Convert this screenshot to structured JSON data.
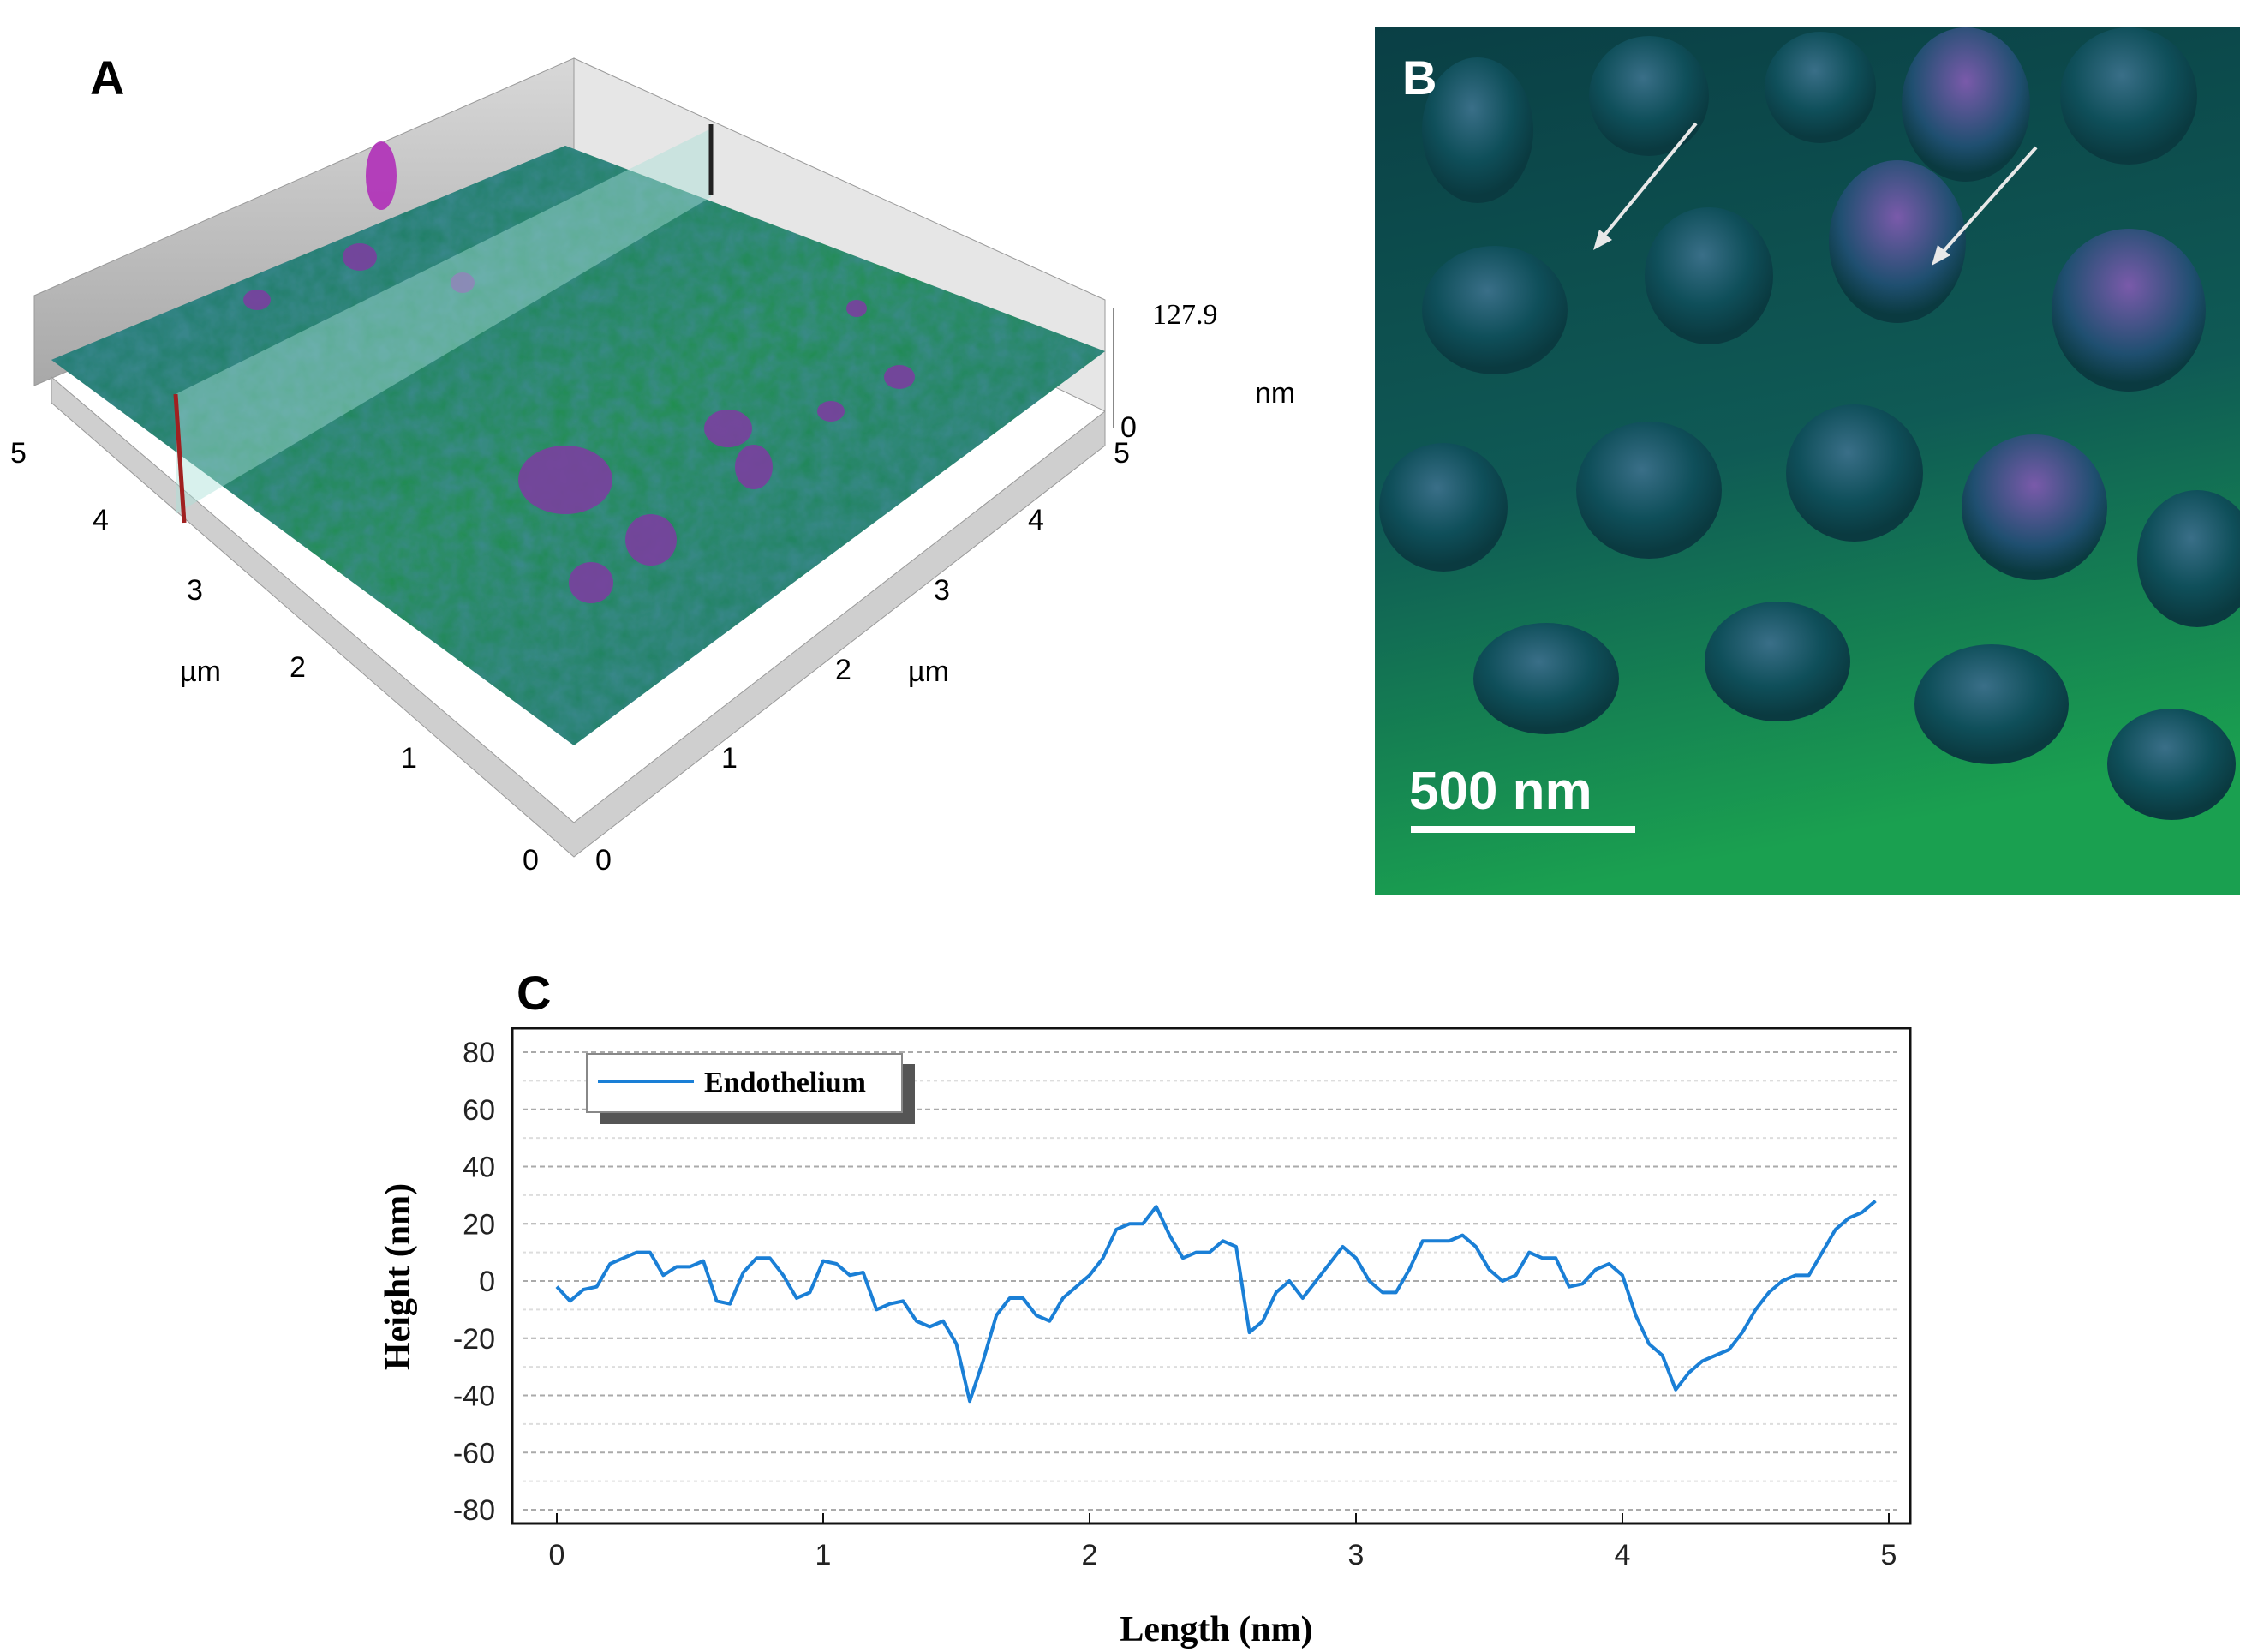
{
  "panel_labels": {
    "a": "A",
    "b": "B",
    "c": "C"
  },
  "panel_a": {
    "z_max_label": "127.9",
    "z_min_label": "0",
    "z_unit": "nm",
    "left_axis_ticks": [
      "5",
      "4",
      "3",
      "2",
      "1",
      "0"
    ],
    "right_axis_ticks": [
      "0",
      "1",
      "2",
      "3",
      "4",
      "5"
    ],
    "axis_unit_left": "µm",
    "axis_unit_right": "µm",
    "colors": {
      "low": "#1f8f4a",
      "mid": "#1f6f80",
      "high": "#7a3f9e",
      "peak": "#b02fb8"
    }
  },
  "panel_b": {
    "scale_bar_label": "500 nm",
    "colors": {
      "base": "#0d4a4f",
      "bright": "#2ee05a",
      "peak": "#6a4a9a"
    }
  },
  "chart_data": {
    "type": "line",
    "title": "",
    "xlabel": "Length (nm)",
    "ylabel": "Height (nm)",
    "xlim": [
      0,
      5
    ],
    "ylim": [
      -80,
      80
    ],
    "x_ticks": [
      "0",
      "1",
      "2",
      "3",
      "4",
      "5"
    ],
    "y_ticks": [
      "80",
      "60",
      "40",
      "20",
      "0",
      "-20",
      "-40",
      "-60",
      "-80"
    ],
    "grid": true,
    "legend_position": "top-left",
    "series": [
      {
        "name": "Endothelium",
        "color": "#1a7fd6",
        "x": [
          0.0,
          0.05,
          0.1,
          0.15,
          0.2,
          0.25,
          0.3,
          0.35,
          0.4,
          0.45,
          0.5,
          0.55,
          0.6,
          0.65,
          0.7,
          0.75,
          0.8,
          0.85,
          0.9,
          0.95,
          1.0,
          1.05,
          1.1,
          1.15,
          1.2,
          1.25,
          1.3,
          1.35,
          1.4,
          1.45,
          1.5,
          1.55,
          1.6,
          1.65,
          1.7,
          1.75,
          1.8,
          1.85,
          1.9,
          1.95,
          2.0,
          2.05,
          2.1,
          2.15,
          2.2,
          2.25,
          2.3,
          2.35,
          2.4,
          2.45,
          2.5,
          2.55,
          2.6,
          2.65,
          2.7,
          2.75,
          2.8,
          2.85,
          2.9,
          2.95,
          3.0,
          3.05,
          3.1,
          3.15,
          3.2,
          3.25,
          3.3,
          3.35,
          3.4,
          3.45,
          3.5,
          3.55,
          3.6,
          3.65,
          3.7,
          3.75,
          3.8,
          3.85,
          3.9,
          3.95,
          4.0,
          4.05,
          4.1,
          4.15,
          4.2,
          4.25,
          4.3,
          4.35,
          4.4,
          4.45,
          4.5,
          4.55,
          4.6,
          4.65,
          4.7,
          4.75,
          4.8,
          4.85,
          4.9,
          4.95
        ],
        "values": [
          -2,
          -7,
          -3,
          -2,
          6,
          8,
          10,
          10,
          2,
          5,
          5,
          7,
          -7,
          -8,
          3,
          8,
          8,
          2,
          -6,
          -4,
          7,
          6,
          2,
          3,
          -10,
          -8,
          -7,
          -14,
          -16,
          -14,
          -22,
          -42,
          -28,
          -12,
          -6,
          -6,
          -12,
          -14,
          -6,
          -2,
          2,
          8,
          18,
          20,
          20,
          26,
          16,
          8,
          10,
          10,
          14,
          12,
          -18,
          -14,
          -4,
          0,
          -6,
          0,
          6,
          12,
          8,
          0,
          -4,
          -4,
          4,
          14,
          14,
          14,
          16,
          12,
          4,
          0,
          2,
          10,
          8,
          8,
          -2,
          -1,
          4,
          6,
          2,
          -12,
          -22,
          -26,
          -38,
          -32,
          -28,
          -26,
          -24,
          -18,
          -10,
          -4,
          0,
          2,
          2,
          10,
          18,
          22,
          24,
          28
        ]
      }
    ]
  }
}
